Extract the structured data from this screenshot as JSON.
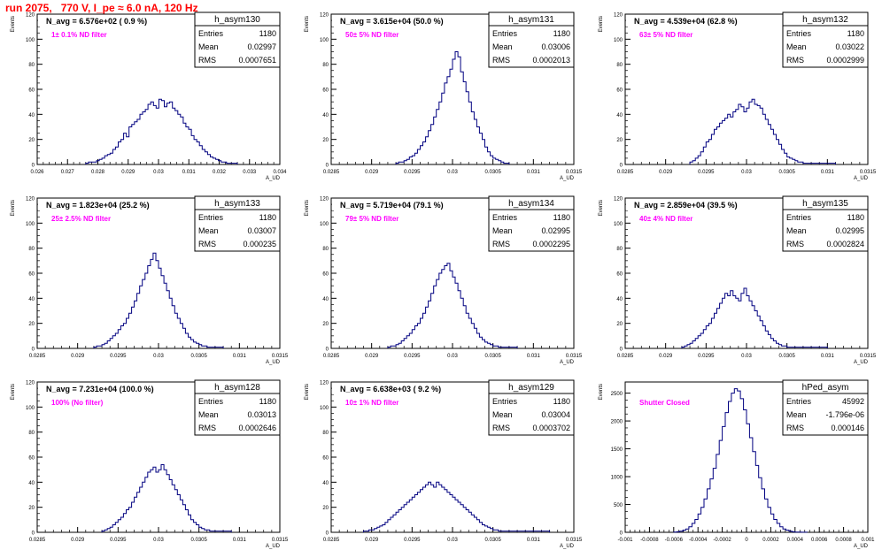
{
  "run_label": "run 2075,   770 V, I_pe ≈ 6.0 nA, 120 Hz",
  "colors": {
    "hist": "#000080",
    "note": "#ff00ff",
    "title": "#ff0000",
    "axis": "#000000"
  },
  "ylabel": "Events",
  "xlabel": "A_UD",
  "stat_labels": {
    "entries": "Entries",
    "mean": "Mean",
    "rms": "RMS"
  },
  "chart_data": [
    {
      "type": "bar",
      "name": "h_asym130",
      "nlabel": "N_avg = 6.576e+02 ( 0.9 %)",
      "note": "1± 0.1% ND filter",
      "stats": {
        "entries": "1180",
        "mean": "0.02997",
        "rms": "0.0007651"
      },
      "xlim": [
        0.026,
        0.034
      ],
      "ylim": [
        0,
        120
      ],
      "xticks": [
        "0.026",
        "0.027",
        "0.028",
        "0.029",
        "0.03",
        "0.031",
        "0.032",
        "0.033",
        "0.034"
      ],
      "yticks": [
        "0",
        "20",
        "40",
        "60",
        "80",
        "100",
        "120"
      ],
      "bin_edges": [
        0.0276,
        0.0326
      ],
      "values": [
        1,
        2,
        2,
        2,
        3,
        4,
        5,
        7,
        8,
        9,
        12,
        14,
        18,
        20,
        25,
        22,
        30,
        32,
        34,
        36,
        40,
        42,
        44,
        48,
        50,
        47,
        45,
        52,
        51,
        46,
        49,
        50,
        45,
        43,
        40,
        38,
        33,
        30,
        28,
        23,
        20,
        18,
        15,
        12,
        10,
        8,
        6,
        5,
        4,
        3,
        2,
        2,
        1,
        1,
        1,
        1
      ]
    },
    {
      "type": "bar",
      "name": "h_asym131",
      "nlabel": "N_avg = 3.615e+04 (50.0 %)",
      "note": "50± 5% ND filter",
      "stats": {
        "entries": "1180",
        "mean": "0.03006",
        "rms": "0.0002013"
      },
      "xlim": [
        0.0285,
        0.0315
      ],
      "ylim": [
        0,
        120
      ],
      "xticks": [
        "0.0285",
        "0.029",
        "0.0295",
        "0.03",
        "0.0305",
        "0.031",
        "0.0315"
      ],
      "yticks": [
        "0",
        "20",
        "40",
        "60",
        "80",
        "100",
        "120"
      ],
      "bin_edges": [
        0.0293,
        0.0307
      ],
      "values": [
        1,
        2,
        2,
        3,
        4,
        6,
        7,
        9,
        12,
        15,
        18,
        22,
        27,
        32,
        38,
        44,
        50,
        57,
        65,
        70,
        76,
        84,
        90,
        86,
        74,
        66,
        58,
        50,
        42,
        36,
        30,
        25,
        20,
        14,
        10,
        7,
        5,
        4,
        3,
        2,
        1,
        1
      ]
    },
    {
      "type": "bar",
      "name": "h_asym132",
      "nlabel": "N_avg = 4.539e+04 (62.8 %)",
      "note": "63± 5% ND filter",
      "stats": {
        "entries": "1180",
        "mean": "0.03022",
        "rms": "0.0002999"
      },
      "xlim": [
        0.0285,
        0.0315
      ],
      "ylim": [
        0,
        120
      ],
      "xticks": [
        "0.0285",
        "0.029",
        "0.0295",
        "0.03",
        "0.0305",
        "0.031",
        "0.0315"
      ],
      "yticks": [
        "0",
        "20",
        "40",
        "60",
        "80",
        "100",
        "120"
      ],
      "bin_edges": [
        0.0293,
        0.0311
      ],
      "values": [
        2,
        3,
        5,
        7,
        10,
        14,
        18,
        20,
        24,
        28,
        30,
        33,
        35,
        37,
        40,
        38,
        42,
        44,
        48,
        46,
        42,
        45,
        50,
        52,
        48,
        47,
        45,
        40,
        36,
        32,
        28,
        24,
        20,
        16,
        12,
        9,
        6,
        5,
        4,
        3,
        2,
        2,
        1,
        1,
        1,
        1,
        1,
        1,
        1,
        1,
        1,
        1,
        1,
        1
      ]
    },
    {
      "type": "bar",
      "name": "h_asym133",
      "nlabel": "N_avg = 1.823e+04 (25.2 %)",
      "note": "25± 2.5% ND filter",
      "stats": {
        "entries": "1180",
        "mean": "0.03007",
        "rms": "0.000235"
      },
      "xlim": [
        0.0285,
        0.0315
      ],
      "ylim": [
        0,
        120
      ],
      "xticks": [
        "0.0285",
        "0.029",
        "0.0295",
        "0.03",
        "0.0305",
        "0.031",
        "0.0315"
      ],
      "yticks": [
        "0",
        "20",
        "40",
        "60",
        "80",
        "100",
        "120"
      ],
      "bin_edges": [
        0.0292,
        0.0308
      ],
      "values": [
        1,
        2,
        2,
        3,
        4,
        6,
        8,
        10,
        12,
        15,
        18,
        20,
        24,
        28,
        33,
        38,
        44,
        50,
        55,
        60,
        66,
        71,
        76,
        70,
        64,
        58,
        52,
        46,
        40,
        34,
        28,
        24,
        20,
        16,
        12,
        9,
        7,
        5,
        4,
        3,
        2,
        2,
        1,
        1,
        1,
        1,
        1,
        1
      ]
    },
    {
      "type": "bar",
      "name": "h_asym134",
      "nlabel": "N_avg = 5.719e+04 (79.1 %)",
      "note": "79± 5% ND filter",
      "stats": {
        "entries": "1180",
        "mean": "0.02995",
        "rms": "0.0002295"
      },
      "xlim": [
        0.0285,
        0.0315
      ],
      "ylim": [
        0,
        120
      ],
      "xticks": [
        "0.0285",
        "0.029",
        "0.0295",
        "0.03",
        "0.0305",
        "0.031",
        "0.0315"
      ],
      "yticks": [
        "0",
        "20",
        "40",
        "60",
        "80",
        "100",
        "120"
      ],
      "bin_edges": [
        0.0292,
        0.0308
      ],
      "values": [
        1,
        2,
        2,
        3,
        4,
        6,
        8,
        10,
        12,
        15,
        18,
        20,
        24,
        28,
        33,
        38,
        44,
        50,
        55,
        60,
        63,
        66,
        68,
        62,
        57,
        52,
        46,
        40,
        34,
        28,
        24,
        20,
        16,
        12,
        9,
        7,
        5,
        4,
        3,
        2,
        2,
        1,
        1,
        1,
        1,
        1,
        1,
        1
      ]
    },
    {
      "type": "bar",
      "name": "h_asym135",
      "nlabel": "N_avg = 2.859e+04 (39.5 %)",
      "note": "40± 4% ND filter",
      "stats": {
        "entries": "1180",
        "mean": "0.02995",
        "rms": "0.0002824"
      },
      "xlim": [
        0.0285,
        0.0315
      ],
      "ylim": [
        0,
        120
      ],
      "xticks": [
        "0.0285",
        "0.029",
        "0.0295",
        "0.03",
        "0.0305",
        "0.031",
        "0.0315"
      ],
      "yticks": [
        "0",
        "20",
        "40",
        "60",
        "80",
        "100",
        "120"
      ],
      "bin_edges": [
        0.0292,
        0.031
      ],
      "values": [
        1,
        2,
        3,
        4,
        6,
        8,
        10,
        12,
        15,
        18,
        20,
        24,
        28,
        32,
        36,
        40,
        44,
        42,
        46,
        42,
        40,
        38,
        44,
        48,
        42,
        38,
        34,
        30,
        26,
        22,
        18,
        14,
        11,
        8,
        6,
        4,
        3,
        2,
        2,
        1,
        1,
        1,
        1,
        1,
        1,
        1,
        1,
        1,
        1,
        1,
        1,
        1,
        1,
        1
      ]
    },
    {
      "type": "bar",
      "name": "h_asym128",
      "nlabel": "N_avg = 7.231e+04 (100.0 %)",
      "note": "100% (No filter)",
      "stats": {
        "entries": "1180",
        "mean": "0.03013",
        "rms": "0.0002646"
      },
      "xlim": [
        0.0285,
        0.0315
      ],
      "ylim": [
        0,
        120
      ],
      "xticks": [
        "0.0285",
        "0.029",
        "0.0295",
        "0.03",
        "0.0305",
        "0.031",
        "0.0315"
      ],
      "yticks": [
        "0",
        "20",
        "40",
        "60",
        "80",
        "100",
        "120"
      ],
      "bin_edges": [
        0.0293,
        0.0309
      ],
      "values": [
        1,
        2,
        3,
        4,
        6,
        8,
        10,
        12,
        15,
        18,
        20,
        24,
        28,
        32,
        36,
        40,
        44,
        48,
        50,
        52,
        48,
        50,
        54,
        50,
        46,
        42,
        38,
        34,
        30,
        26,
        22,
        18,
        14,
        10,
        8,
        6,
        4,
        3,
        2,
        2,
        1,
        1,
        1,
        1,
        1,
        1,
        1,
        1
      ]
    },
    {
      "type": "bar",
      "name": "h_asym129",
      "nlabel": "N_avg = 6.638e+03 ( 9.2 %)",
      "note": "10± 1% ND filter",
      "stats": {
        "entries": "1180",
        "mean": "0.03004",
        "rms": "0.0003702"
      },
      "xlim": [
        0.0285,
        0.0315
      ],
      "ylim": [
        0,
        120
      ],
      "xticks": [
        "0.0285",
        "0.029",
        "0.0295",
        "0.03",
        "0.0305",
        "0.031",
        "0.0315"
      ],
      "yticks": [
        "0",
        "20",
        "40",
        "60",
        "80",
        "100",
        "120"
      ],
      "bin_edges": [
        0.0289,
        0.0312
      ],
      "values": [
        1,
        1,
        2,
        2,
        3,
        4,
        5,
        6,
        8,
        10,
        12,
        14,
        16,
        18,
        20,
        22,
        24,
        26,
        28,
        30,
        32,
        34,
        36,
        38,
        40,
        38,
        36,
        40,
        38,
        36,
        34,
        32,
        30,
        28,
        26,
        24,
        22,
        20,
        18,
        16,
        14,
        12,
        10,
        8,
        6,
        5,
        4,
        3,
        2,
        2,
        1,
        1,
        1,
        1,
        1,
        1,
        1,
        1,
        1,
        1,
        1,
        1,
        1,
        1,
        1,
        1,
        1,
        1,
        1
      ]
    },
    {
      "type": "bar",
      "name": "hPed_asym",
      "nlabel": "",
      "note": "Shutter Closed",
      "stats": {
        "entries": "45992",
        "mean": "-1.796e-06",
        "rms": "0.000146"
      },
      "xlim": [
        -0.001,
        0.001
      ],
      "ylim": [
        0,
        2700
      ],
      "xticks": [
        "-0.001",
        "-0.0008",
        "-0.0006",
        "-0.0004",
        "-0.0002",
        "0",
        "0.0002",
        "0.0004",
        "0.0006",
        "0.0008",
        "0.001"
      ],
      "yticks": [
        "0",
        "500",
        "1000",
        "1500",
        "2000",
        "2500"
      ],
      "bin_edges": [
        -0.0006,
        0.0005
      ],
      "values": [
        5,
        10,
        20,
        40,
        60,
        100,
        160,
        230,
        330,
        450,
        600,
        780,
        960,
        1150,
        1400,
        1650,
        1900,
        2150,
        2350,
        2500,
        2580,
        2540,
        2400,
        2200,
        1950,
        1700,
        1450,
        1200,
        980,
        780,
        600,
        450,
        330,
        230,
        160,
        100,
        60,
        40,
        20,
        10,
        5,
        3,
        2,
        1
      ]
    }
  ]
}
